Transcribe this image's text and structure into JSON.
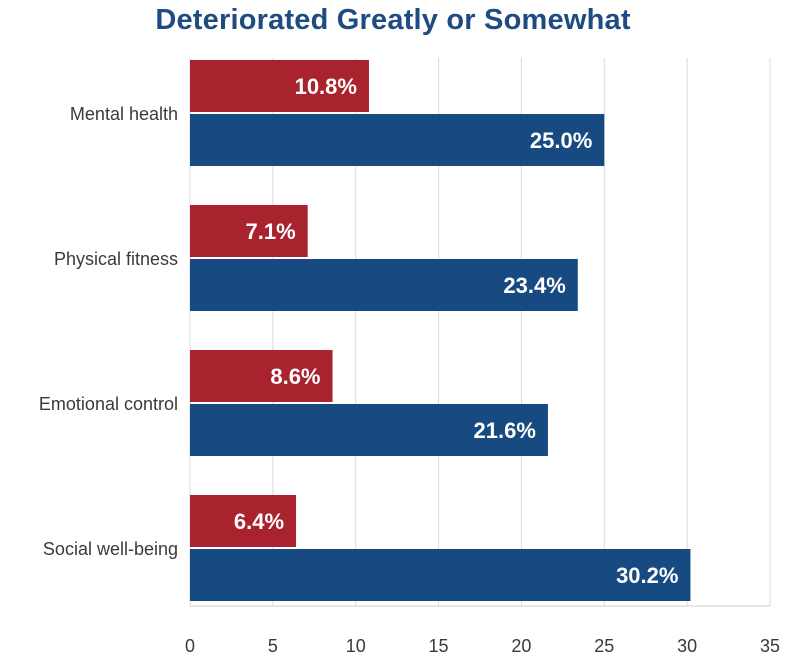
{
  "chart_data": {
    "type": "bar",
    "orientation": "horizontal",
    "title": "Deteriorated Greatly or Somewhat",
    "categories": [
      "Mental health",
      "Physical fitness",
      "Emotional control",
      "Social well-being"
    ],
    "series": [
      {
        "color": "#a8232e",
        "values": [
          10.8,
          7.1,
          8.6,
          6.4
        ],
        "labels": [
          "10.8%",
          "7.1%",
          "8.6%",
          "6.4%"
        ]
      },
      {
        "color": "#174a80",
        "values": [
          25.0,
          23.4,
          21.6,
          30.2
        ],
        "labels": [
          "25.0%",
          "23.4%",
          "21.6%",
          "30.2%"
        ]
      }
    ],
    "xlim": [
      0,
      35
    ],
    "xticks": [
      0,
      5,
      10,
      15,
      20,
      25,
      30,
      35
    ],
    "xtick_labels": [
      "0",
      "5",
      "10",
      "15",
      "20",
      "25",
      "30",
      "35"
    ],
    "grid": "vertical",
    "legend": "none"
  }
}
